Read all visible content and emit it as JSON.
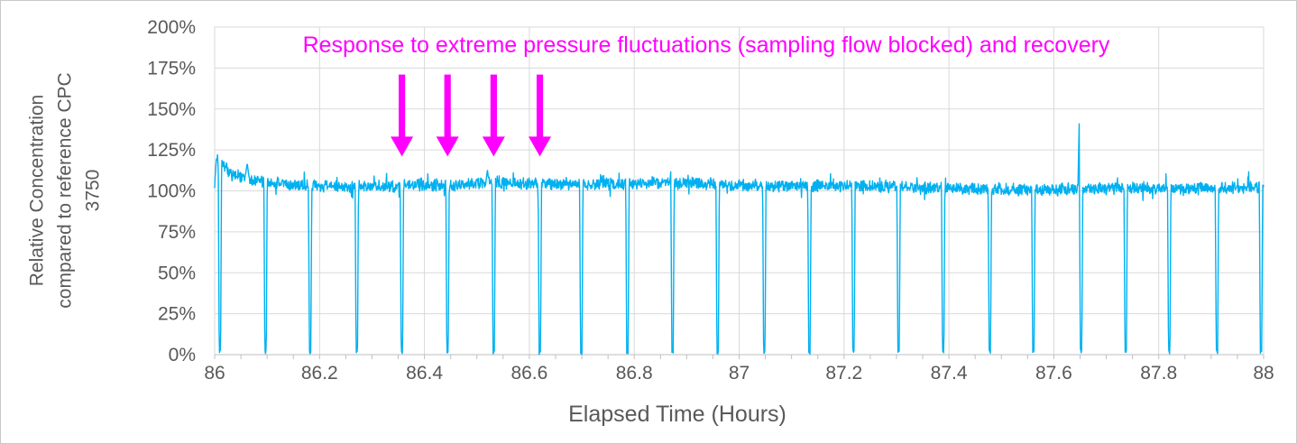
{
  "chart_data": {
    "type": "line",
    "title": "",
    "xlabel": "Elapsed Time (Hours)",
    "ylabel_lines": [
      "Relative Concentration",
      "compared to reference CPC",
      "3750"
    ],
    "xlim": [
      86,
      88
    ],
    "ylim": [
      0,
      200
    ],
    "x_ticks": [
      86,
      86.2,
      86.4,
      86.6,
      86.8,
      87,
      87.2,
      87.4,
      87.6,
      87.8,
      88
    ],
    "x_tick_labels": [
      "86",
      "86.2",
      "86.4",
      "86.6",
      "86.8",
      "87",
      "87.2",
      "87.4",
      "87.6",
      "87.8",
      "88"
    ],
    "x_minor_step": 0.05,
    "y_ticks": [
      0,
      25,
      50,
      75,
      100,
      125,
      150,
      175,
      200
    ],
    "y_tick_labels": [
      "0%",
      "25%",
      "50%",
      "75%",
      "100%",
      "125%",
      "150%",
      "175%",
      "200%"
    ],
    "grid": true,
    "legend": "none",
    "colors": {
      "series": "#00B0F0",
      "gridline": "#D9D9D9",
      "axis_line": "#BFBFBF",
      "axis_text": "#595959",
      "annotation": "#FF00FF"
    },
    "series": [
      {
        "name": "Relative concentration vs reference CPC 3750",
        "color": "#00B0F0",
        "description": "Noisy 1-s trace near 100-105% with periodic zero dips (sampling flow blocked events) about every 0.086 h and recovery",
        "baseline_control_points": [
          [
            86.0,
            104
          ],
          [
            86.004,
            121
          ],
          [
            86.01,
            117
          ],
          [
            86.02,
            113
          ],
          [
            86.035,
            110
          ],
          [
            86.06,
            107.5
          ],
          [
            86.1,
            105
          ],
          [
            86.15,
            103.5
          ],
          [
            86.22,
            102.5
          ],
          [
            86.3,
            103
          ],
          [
            86.38,
            103.5
          ],
          [
            86.46,
            104
          ],
          [
            86.54,
            105
          ],
          [
            86.62,
            104.5
          ],
          [
            86.7,
            104
          ],
          [
            86.78,
            104.5
          ],
          [
            86.86,
            105
          ],
          [
            86.93,
            104.5
          ],
          [
            87.0,
            103.5
          ],
          [
            87.1,
            103
          ],
          [
            87.2,
            102.8
          ],
          [
            87.3,
            102.5
          ],
          [
            87.4,
            101.8
          ],
          [
            87.5,
            101
          ],
          [
            87.57,
            100.3
          ],
          [
            87.65,
            101.5
          ],
          [
            87.75,
            101.8
          ],
          [
            87.85,
            101.3
          ],
          [
            87.93,
            102
          ],
          [
            88.0,
            102.3
          ]
        ],
        "noise_pct": 4.2,
        "zero_dip_times": [
          86.01,
          86.097,
          86.182,
          86.271,
          86.357,
          86.444,
          86.532,
          86.62,
          86.699,
          86.787,
          86.873,
          86.959,
          87.048,
          87.134,
          87.218,
          87.304,
          87.389,
          87.478,
          87.561,
          87.652,
          87.737,
          87.82,
          87.911,
          87.995
        ],
        "dip_inner_half_width_h": 0.0013,
        "dip_outer_half_width_h": 0.0032,
        "up_spikes": [
          {
            "t": 86.062,
            "peak_pct": 117,
            "half_width_h": 0.004
          },
          {
            "t": 86.52,
            "peak_pct": 113,
            "half_width_h": 0.003
          },
          {
            "t": 86.872,
            "peak_pct": 122,
            "half_width_h": 0.004
          },
          {
            "t": 87.6487,
            "peak_pct": 147,
            "half_width_h": 0.0028
          }
        ],
        "seed": 7,
        "points_count": 2600
      }
    ],
    "annotation": {
      "text": "Response to extreme pressure fluctuations (sampling flow blocked) and recovery",
      "color": "#FF00FF",
      "arrow_times": [
        86.357,
        86.444,
        86.532,
        86.62
      ],
      "arrow_top_pct": 171,
      "arrow_tip_pct": 121
    }
  }
}
